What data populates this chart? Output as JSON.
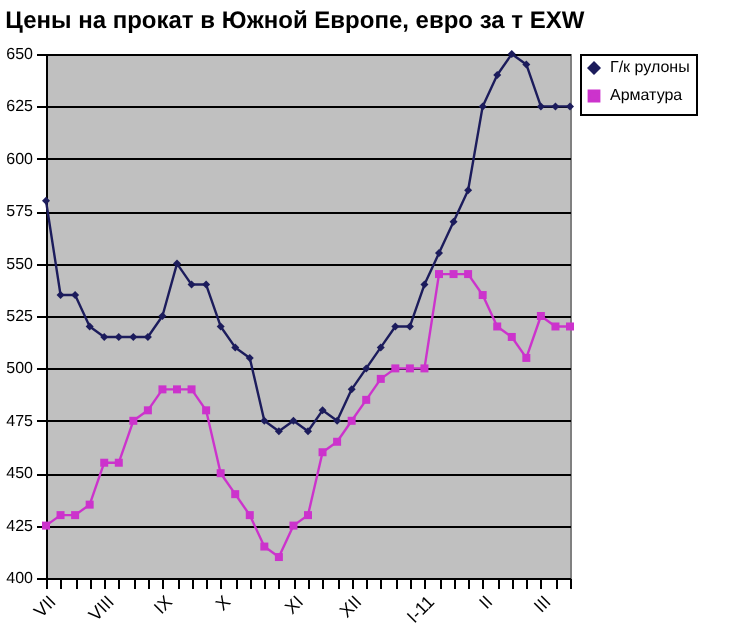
{
  "chart_data": {
    "type": "line",
    "title": "Цены на прокат в Южной Европе, евро за т EXW",
    "categories": [
      "VII",
      null,
      null,
      null,
      "VIII",
      null,
      null,
      null,
      "IX",
      null,
      null,
      null,
      "X",
      null,
      null,
      null,
      null,
      "XI",
      null,
      null,
      null,
      "XII",
      null,
      null,
      null,
      null,
      "I-11",
      null,
      null,
      null,
      "II",
      null,
      null,
      null,
      "III",
      null,
      null
    ],
    "series": [
      {
        "name": "Г/к рулоны",
        "color": "#1c1c5c",
        "marker": "diamond",
        "values": [
          580,
          535,
          535,
          520,
          515,
          515,
          515,
          515,
          525,
          550,
          540,
          540,
          520,
          510,
          505,
          475,
          470,
          475,
          470,
          480,
          475,
          490,
          500,
          510,
          520,
          520,
          540,
          555,
          570,
          585,
          625,
          640,
          650,
          645,
          625,
          625,
          625
        ]
      },
      {
        "name": "Арматура",
        "color": "#cc33cc",
        "marker": "square",
        "values": [
          425,
          430,
          430,
          435,
          455,
          455,
          475,
          480,
          490,
          490,
          490,
          480,
          450,
          440,
          430,
          415,
          410,
          425,
          430,
          460,
          465,
          475,
          485,
          495,
          500,
          500,
          500,
          545,
          545,
          545,
          535,
          520,
          515,
          505,
          525,
          520,
          520
        ]
      }
    ],
    "ylim": [
      400,
      650
    ],
    "yticks": [
      400,
      425,
      450,
      475,
      500,
      525,
      550,
      575,
      600,
      625,
      650
    ],
    "grid": "y",
    "legend": "right"
  }
}
